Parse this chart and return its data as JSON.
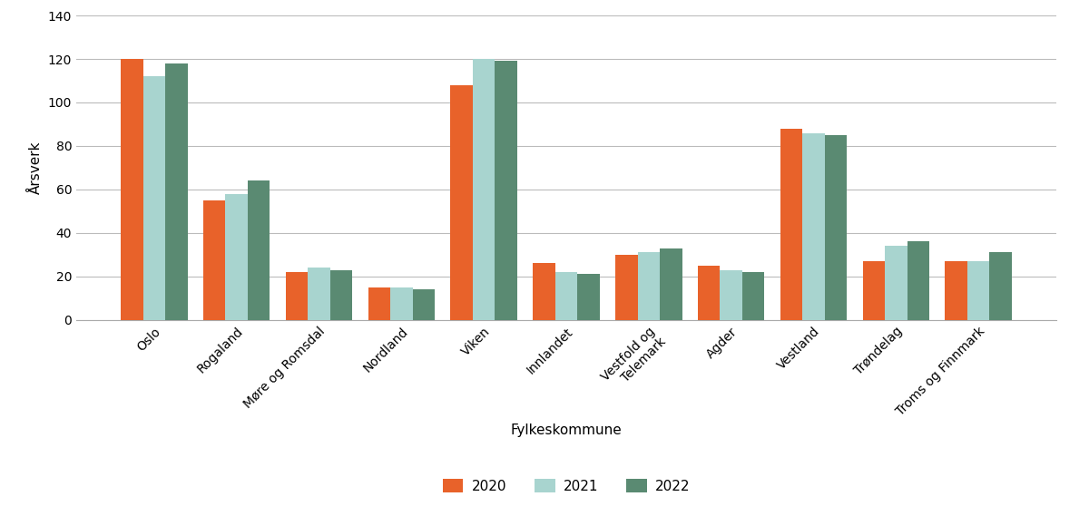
{
  "categories": [
    "Oslo",
    "Rogaland",
    "Møre og Romsdal",
    "Nordland",
    "Viken",
    "Innlandet",
    "Vestfold og\nTelemark",
    "Agder",
    "Vestland",
    "Trøndelag",
    "Troms og Finnmark"
  ],
  "values_2020": [
    120,
    55,
    22,
    15,
    108,
    26,
    30,
    25,
    88,
    27,
    27
  ],
  "values_2021": [
    112,
    58,
    24,
    15,
    120,
    22,
    31,
    23,
    86,
    34,
    27
  ],
  "values_2022": [
    118,
    64,
    23,
    14,
    119,
    21,
    33,
    22,
    85,
    36,
    31
  ],
  "color_2020": "#E8622A",
  "color_2021": "#A8D4CF",
  "color_2022": "#5A8A72",
  "ylabel": "Årsverk",
  "xlabel": "Fylkeskommune",
  "ylim": [
    0,
    140
  ],
  "yticks": [
    0,
    20,
    40,
    60,
    80,
    100,
    120,
    140
  ],
  "legend_labels": [
    "2020",
    "2021",
    "2022"
  ],
  "bar_width": 0.27,
  "grid_color": "#bbbbbb",
  "background_color": "#ffffff",
  "tick_fontsize": 10,
  "label_fontsize": 11,
  "legend_fontsize": 11
}
